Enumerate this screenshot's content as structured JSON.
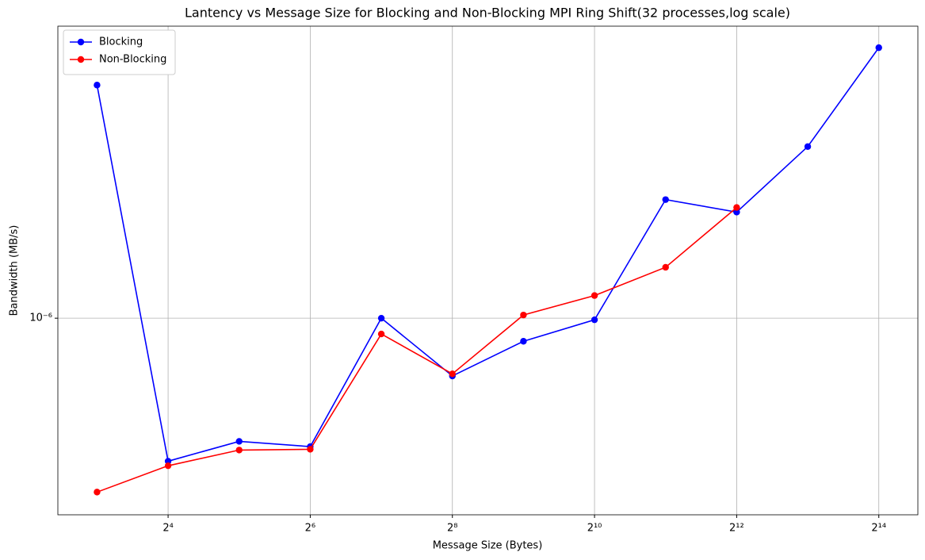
{
  "chart_data": {
    "type": "line",
    "title": "Lantency vs Message Size for Blocking and Non-Blocking MPI Ring Shift(32 processes,log scale)",
    "x_label": "Message Size (Bytes)",
    "y_label": "Bandwidth (MB/s)",
    "x": [
      8,
      16,
      32,
      64,
      128,
      256,
      512,
      1024,
      2048,
      4096,
      8192,
      16384
    ],
    "series": [
      {
        "name": "Blocking",
        "color": "#0000ff",
        "values": [
          3.21e-06,
          4.89e-07,
          5.4e-07,
          5.26e-07,
          1e-06,
          7.49e-07,
          8.91e-07,
          9.92e-07,
          1.81e-06,
          1.7e-06,
          2.36e-06,
          3.87e-06
        ]
      },
      {
        "name": "Non-Blocking",
        "color": "#ff0000",
        "values": [
          4.19e-07,
          4.78e-07,
          5.17e-07,
          5.19e-07,
          9.24e-07,
          7.57e-07,
          1.016e-06,
          1.12e-06,
          1.29e-06,
          1.74e-06,
          null,
          null
        ]
      }
    ],
    "xlog": true,
    "ylog": true,
    "xlim": [
      5.46,
      23980
    ],
    "xticks": [
      {
        "value": 16,
        "label": "2⁴"
      },
      {
        "value": 64,
        "label": "2⁶"
      },
      {
        "value": 256,
        "label": "2⁸"
      },
      {
        "value": 1024,
        "label": "2¹⁰"
      },
      {
        "value": 4096,
        "label": "2¹²"
      },
      {
        "value": 16384,
        "label": "2¹⁴"
      }
    ],
    "ylim": [
      3.74e-07,
      4.31e-06
    ],
    "yticks": [
      {
        "value": 1e-06,
        "label": "10⁻⁶"
      }
    ],
    "grid": true,
    "legend": "upper-left"
  }
}
